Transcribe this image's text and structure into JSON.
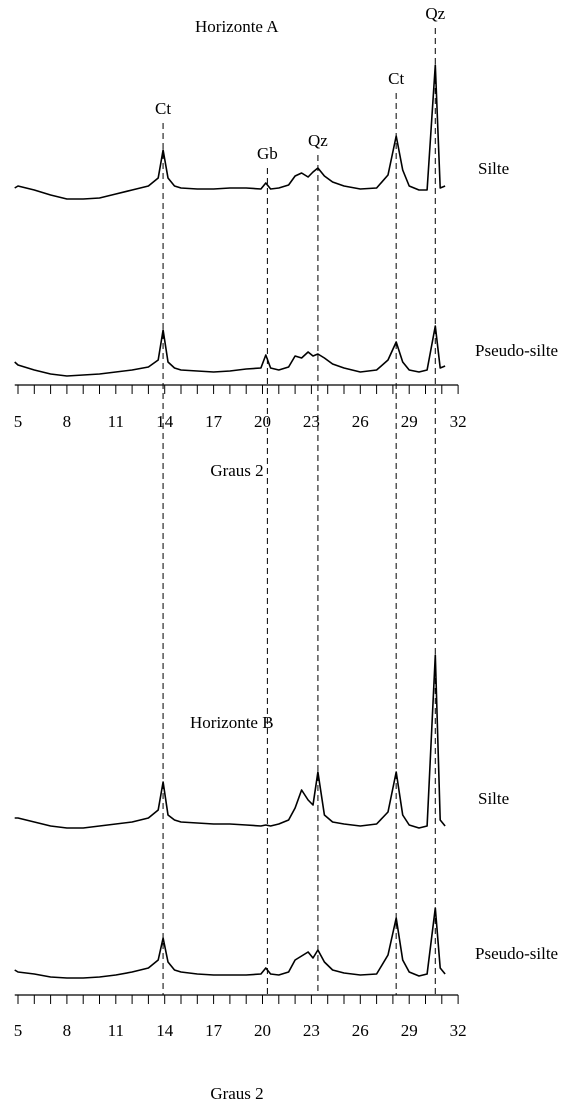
{
  "chart_data": [
    {
      "type": "line",
      "title": "Horizonte A",
      "xlabel": "Graus 2",
      "x": [
        4.8,
        5,
        6,
        7,
        8,
        9,
        10,
        11,
        12,
        13,
        13.6,
        13.9,
        14.2,
        14.6,
        15,
        16,
        17,
        18,
        19,
        19.9,
        20.2,
        20.5,
        21,
        21.6,
        22,
        22.4,
        22.8,
        23.1,
        23.4,
        23.8,
        24.3,
        25,
        26,
        27,
        27.7,
        28.2,
        28.6,
        29,
        29.6,
        30.1,
        30.6,
        30.9,
        31.2
      ],
      "series": [
        {
          "name": "Silte",
          "color": "#000000",
          "values": [
            12,
            14,
            10,
            5,
            1,
            1,
            2,
            6,
            10,
            14,
            22,
            50,
            22,
            14,
            12,
            11,
            11,
            12,
            12,
            11,
            17,
            11,
            12,
            15,
            24,
            27,
            23,
            28,
            32,
            24,
            18,
            14,
            11,
            12,
            25,
            64,
            30,
            14,
            10,
            10,
            135,
            12,
            14
          ]
        },
        {
          "name": "Pseudo-silte",
          "color": "#000000",
          "values": [
            18,
            15,
            10,
            6,
            4,
            5,
            6,
            8,
            10,
            13,
            20,
            50,
            18,
            12,
            10,
            9,
            8,
            9,
            11,
            12,
            25,
            12,
            10,
            13,
            24,
            22,
            28,
            24,
            26,
            22,
            16,
            12,
            8,
            10,
            20,
            38,
            18,
            10,
            8,
            10,
            54,
            12,
            14
          ]
        }
      ],
      "xlim": [
        4.8,
        32
      ],
      "xticks": [
        5,
        8,
        11,
        14,
        17,
        20,
        23,
        26,
        29,
        32
      ],
      "minor_xticks": [
        6,
        7,
        9,
        10,
        12,
        13,
        15,
        16,
        18,
        19,
        21,
        22,
        24,
        25,
        27,
        28,
        30,
        31
      ],
      "annotations": [
        {
          "x": 13.9,
          "label": "Ct"
        },
        {
          "x": 20.3,
          "label": "Gb"
        },
        {
          "x": 23.4,
          "label": "Qz"
        },
        {
          "x": 28.2,
          "label": "Ct"
        },
        {
          "x": 30.6,
          "label": "Qz"
        }
      ]
    },
    {
      "type": "line",
      "title": "Horizonte B",
      "xlabel": "Graus 2",
      "x": [
        4.8,
        5,
        6,
        7,
        8,
        9,
        10,
        11,
        12,
        13,
        13.6,
        13.9,
        14.2,
        14.6,
        15,
        16,
        17,
        18,
        19,
        19.9,
        20.2,
        20.5,
        21,
        21.6,
        22,
        22.4,
        22.8,
        23.1,
        23.4,
        23.8,
        24.3,
        25,
        26,
        27,
        27.7,
        28.2,
        28.6,
        29,
        29.6,
        30.1,
        30.6,
        30.9,
        31.2
      ],
      "series": [
        {
          "name": "Silte",
          "color": "#000000",
          "values": [
            12,
            12,
            8,
            4,
            2,
            2,
            4,
            6,
            8,
            12,
            20,
            48,
            15,
            10,
            8,
            7,
            6,
            6,
            5,
            4,
            5,
            4,
            6,
            10,
            22,
            40,
            30,
            25,
            58,
            15,
            8,
            6,
            4,
            6,
            18,
            58,
            15,
            5,
            2,
            4,
            175,
            10,
            4
          ]
        },
        {
          "name": "Pseudo-silte",
          "color": "#000000",
          "values": [
            10,
            8,
            6,
            3,
            2,
            2,
            3,
            5,
            8,
            12,
            20,
            42,
            18,
            10,
            8,
            6,
            5,
            5,
            5,
            6,
            12,
            6,
            5,
            8,
            20,
            24,
            28,
            22,
            30,
            18,
            10,
            7,
            5,
            6,
            25,
            62,
            20,
            8,
            4,
            6,
            72,
            12,
            6
          ]
        }
      ],
      "xlim": [
        4.8,
        32
      ],
      "xticks": [
        5,
        8,
        11,
        14,
        17,
        20,
        23,
        26,
        29,
        32
      ],
      "minor_xticks": [
        6,
        7,
        9,
        10,
        12,
        13,
        15,
        16,
        18,
        19,
        21,
        22,
        24,
        25,
        27,
        28,
        30,
        31
      ]
    }
  ]
}
